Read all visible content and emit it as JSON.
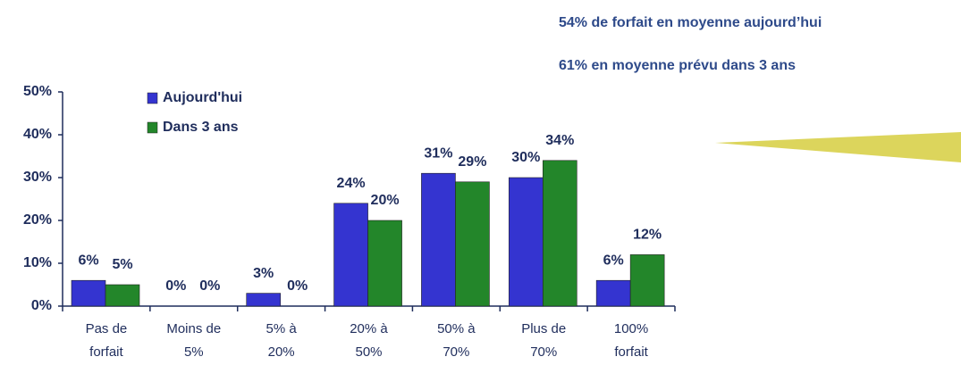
{
  "chart_data": {
    "type": "bar",
    "annotations": [
      "54% de forfait  en moyenne aujourd’hui",
      "61% en moyenne prévu dans 3 ans"
    ],
    "categories": [
      [
        "Pas de",
        "forfait"
      ],
      [
        "Moins de",
        "5%"
      ],
      [
        "5% à",
        "20%"
      ],
      [
        "20% à",
        "50%"
      ],
      [
        "50% à",
        "70%"
      ],
      [
        "Plus de",
        "70%"
      ],
      [
        "100%",
        "forfait"
      ]
    ],
    "series": [
      {
        "name": "Aujourd'hui",
        "color": "#3434d0",
        "values": [
          6,
          0,
          3,
          24,
          31,
          30,
          6
        ],
        "value_labels": [
          "6%",
          "0%",
          "3%",
          "24%",
          "31%",
          "30%",
          "6%"
        ]
      },
      {
        "name": "Dans 3 ans",
        "color": "#23862a",
        "values": [
          5,
          0,
          0,
          20,
          29,
          34,
          12
        ],
        "value_labels": [
          "5%",
          "0%",
          "0%",
          "20%",
          "29%",
          "34%",
          "12%"
        ]
      }
    ],
    "ylim": [
      0,
      50
    ],
    "yticks": [
      {
        "value": 0,
        "label": "0%"
      },
      {
        "value": 10,
        "label": "10%"
      },
      {
        "value": 20,
        "label": "20%"
      },
      {
        "value": 30,
        "label": "30%"
      },
      {
        "value": 40,
        "label": "40%"
      },
      {
        "value": 50,
        "label": "50%"
      }
    ],
    "legend": "top-left"
  }
}
